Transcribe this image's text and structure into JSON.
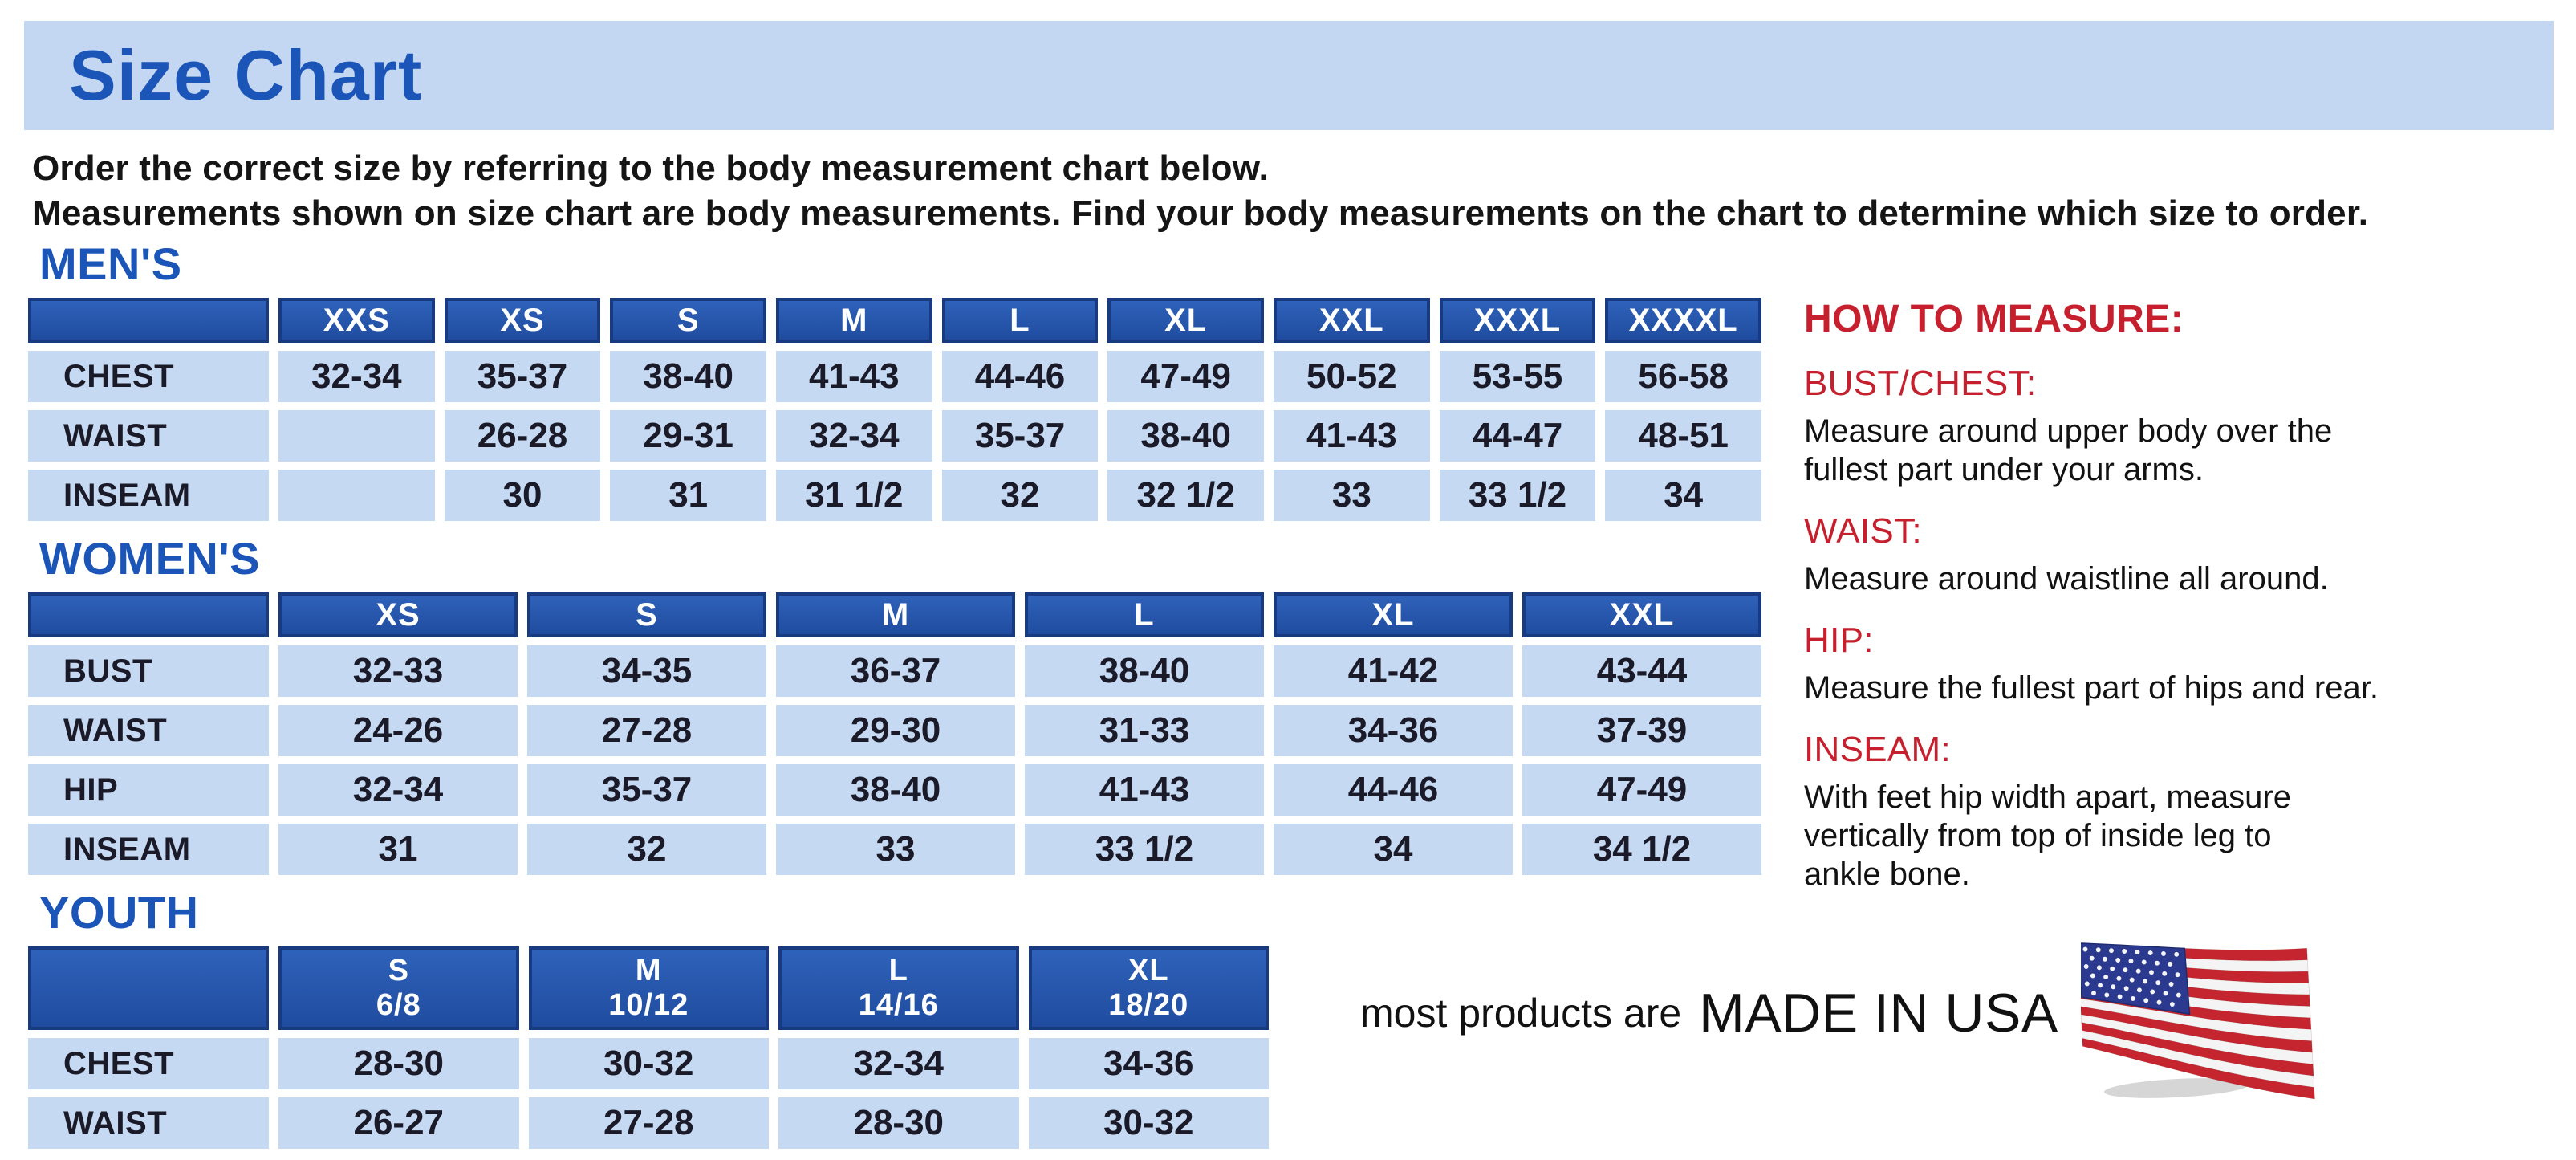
{
  "page": {
    "title": "Size Chart",
    "intro_line1": "Order the correct size by referring to the body measurement chart below.",
    "intro_line2": "Measurements shown on size chart are body measurements.  Find your body measurements on the chart to determine which size to order."
  },
  "colors": {
    "banner_bg": "#c3d6f2",
    "title_blue": "#1c55b8",
    "table_header_blue": "#2454ab",
    "table_header_border": "#183a80",
    "table_cell_blue": "#c6d9f2",
    "accent_red": "#c6202e",
    "flag_red": "#c4252f",
    "flag_canton_blue": "#2b3a8f"
  },
  "tables": {
    "mens": {
      "heading": "MEN'S",
      "columns": [
        "XXS",
        "XS",
        "S",
        "M",
        "L",
        "XL",
        "XXL",
        "XXXL",
        "XXXXL"
      ],
      "rows": [
        {
          "label": "CHEST",
          "values": [
            "32-34",
            "35-37",
            "38-40",
            "41-43",
            "44-46",
            "47-49",
            "50-52",
            "53-55",
            "56-58"
          ]
        },
        {
          "label": "WAIST",
          "values": [
            "",
            "26-28",
            "29-31",
            "32-34",
            "35-37",
            "38-40",
            "41-43",
            "44-47",
            "48-51"
          ]
        },
        {
          "label": "INSEAM",
          "values": [
            "",
            "30",
            "31",
            "31 1/2",
            "32",
            "32 1/2",
            "33",
            "33 1/2",
            "34"
          ]
        }
      ]
    },
    "womens": {
      "heading": "WOMEN'S",
      "columns": [
        "XS",
        "S",
        "M",
        "L",
        "XL",
        "XXL"
      ],
      "rows": [
        {
          "label": "BUST",
          "values": [
            "32-33",
            "34-35",
            "36-37",
            "38-40",
            "41-42",
            "43-44"
          ]
        },
        {
          "label": "WAIST",
          "values": [
            "24-26",
            "27-28",
            "29-30",
            "31-33",
            "34-36",
            "37-39"
          ]
        },
        {
          "label": "HIP",
          "values": [
            "32-34",
            "35-37",
            "38-40",
            "41-43",
            "44-46",
            "47-49"
          ]
        },
        {
          "label": "INSEAM",
          "values": [
            "31",
            "32",
            "33",
            "33 1/2",
            "34",
            "34 1/2"
          ]
        }
      ]
    },
    "youth": {
      "heading": "YOUTH",
      "columns": [
        {
          "size": "S",
          "age": "6/8"
        },
        {
          "size": "M",
          "age": "10/12"
        },
        {
          "size": "L",
          "age": "14/16"
        },
        {
          "size": "XL",
          "age": "18/20"
        }
      ],
      "rows": [
        {
          "label": "CHEST",
          "values": [
            "28-30",
            "30-32",
            "32-34",
            "34-36"
          ]
        },
        {
          "label": "WAIST",
          "values": [
            "26-27",
            "27-28",
            "28-30",
            "30-32"
          ]
        }
      ]
    }
  },
  "how_to_measure": {
    "heading": "HOW TO MEASURE:",
    "items": [
      {
        "label": "BUST/CHEST:",
        "text": "Measure around upper body over the\nfullest part under your arms."
      },
      {
        "label": "WAIST:",
        "text": "Measure around waistline all around."
      },
      {
        "label": "HIP:",
        "text": "Measure the fullest part of hips and rear."
      },
      {
        "label": "INSEAM:",
        "text": "With feet hip width apart, measure\nvertically from top of inside leg to\nankle bone."
      }
    ]
  },
  "footer": {
    "prefix": "most products are",
    "emphasis": "MADE IN USA",
    "flag_icon": "us-flag"
  }
}
